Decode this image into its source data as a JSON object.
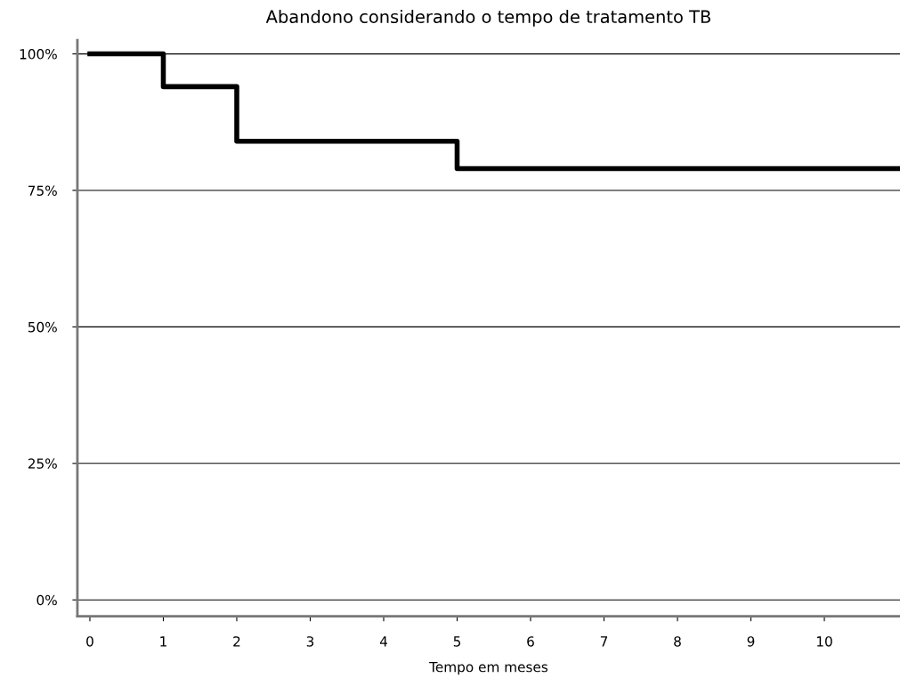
{
  "chart_data": {
    "type": "step",
    "title": "Abandono considerando o tempo de tratamento TB",
    "xlabel": "Tempo em meses",
    "x": [
      0,
      1,
      2,
      5,
      11
    ],
    "series": [
      {
        "color": "#000000",
        "values": [
          100,
          94,
          84,
          79,
          79
        ]
      }
    ],
    "xlim": [
      -0.17,
      11.03
    ],
    "xticks": [
      0,
      1,
      2,
      3,
      4,
      5,
      6,
      7,
      8,
      9,
      10
    ],
    "ylim": [
      -3,
      102.5
    ],
    "yticks": [
      {
        "value": 0,
        "label": "0%"
      },
      {
        "value": 25,
        "label": "25%"
      },
      {
        "value": 50,
        "label": "50%"
      },
      {
        "value": 75,
        "label": "75%"
      },
      {
        "value": 100,
        "label": "100%"
      }
    ],
    "grid": "y",
    "legend": false,
    "line_style": "solid",
    "marker": "none"
  }
}
